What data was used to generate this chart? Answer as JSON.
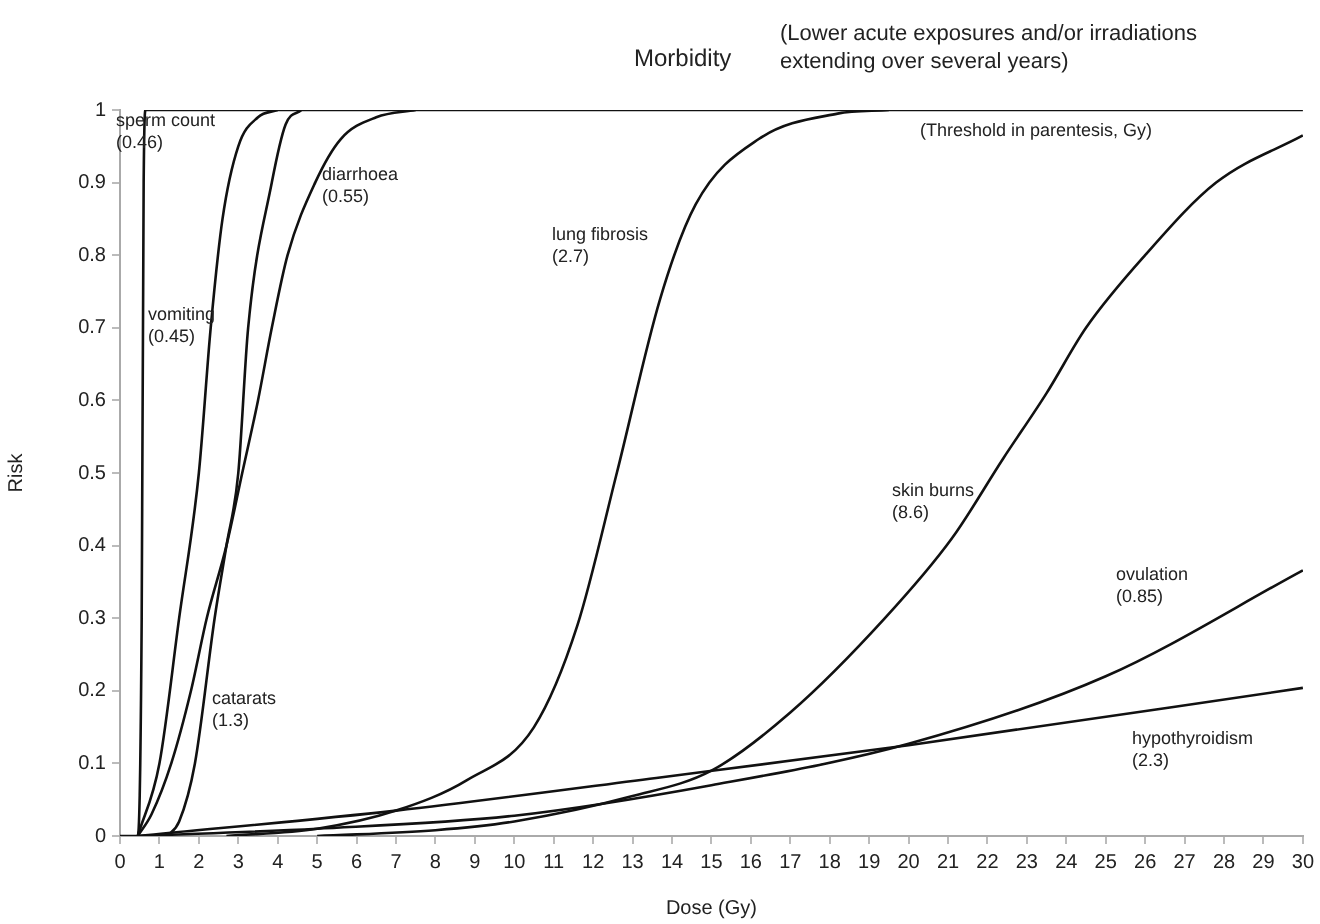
{
  "chart_data": {
    "type": "line",
    "title": "Morbidity",
    "subtitle": "(Lower acute exposures and/or irradiations extending over several years)",
    "xlabel": "Dose (Gy)",
    "ylabel": "Risk",
    "annotations": [
      "(Threshold in parentesis, Gy)"
    ],
    "xlim": [
      0,
      30
    ],
    "xticks": [
      0,
      1,
      2,
      3,
      4,
      5,
      6,
      7,
      8,
      9,
      10,
      11,
      12,
      13,
      14,
      15,
      16,
      17,
      18,
      19,
      20,
      21,
      22,
      23,
      24,
      25,
      26,
      27,
      28,
      29,
      30
    ],
    "ylim": [
      0,
      1
    ],
    "yticks": [
      0,
      0.1,
      0.2,
      0.3,
      0.4,
      0.5,
      0.6,
      0.7,
      0.8,
      0.9,
      1
    ],
    "grid": false,
    "legend": false,
    "marker": "none",
    "line_style": "solid",
    "series": [
      {
        "name": "sperm count (0.46)",
        "color": "#111111",
        "x": [
          0,
          0.45,
          0.55,
          0.6,
          0.65,
          30
        ],
        "values": [
          0,
          0,
          0.3,
          0.9,
          1,
          1
        ]
      },
      {
        "name": "vomiting (0.45)",
        "color": "#111111",
        "x": [
          0.45,
          1,
          1.5,
          2,
          2.3,
          2.6,
          3,
          3.5,
          4
        ],
        "values": [
          0,
          0.1,
          0.3,
          0.5,
          0.7,
          0.85,
          0.95,
          0.99,
          1
        ]
      },
      {
        "name": "catarats (1.3)",
        "color": "#111111",
        "x": [
          1.2,
          1.5,
          1.9,
          2.4,
          2.7,
          3,
          3.25,
          3.85,
          4.2,
          4.6
        ],
        "values": [
          0,
          0.02,
          0.1,
          0.3,
          0.4,
          0.5,
          0.7,
          0.9,
          0.98,
          1
        ]
      },
      {
        "name": "diarrhoea (0.55)",
        "color": "#111111",
        "x": [
          0.45,
          0.8,
          1.3,
          1.8,
          2.2,
          2.7,
          3.1,
          3.5,
          3.85,
          4.25,
          4.95,
          5.6,
          6.5,
          7.5
        ],
        "values": [
          0,
          0.03,
          0.1,
          0.2,
          0.3,
          0.4,
          0.5,
          0.6,
          0.7,
          0.8,
          0.9,
          0.96,
          0.99,
          1
        ]
      },
      {
        "name": "lung fibrosis (2.7)",
        "color": "#111111",
        "x": [
          2.7,
          5,
          7,
          8.8,
          10.5,
          11.6,
          12.6,
          13.7,
          14.6,
          16.2,
          18.2,
          19.5
        ],
        "values": [
          0,
          0.01,
          0.035,
          0.077,
          0.15,
          0.29,
          0.5,
          0.74,
          0.87,
          0.96,
          0.995,
          1
        ]
      },
      {
        "name": "skin burns (8.6)",
        "color": "#111111",
        "x": [
          5,
          8,
          10,
          13,
          15,
          17,
          19.4,
          21.1,
          22.4,
          23.5,
          24.5,
          26,
          27.8,
          30
        ],
        "values": [
          0,
          0.008,
          0.02,
          0.055,
          0.09,
          0.17,
          0.3,
          0.41,
          0.52,
          0.61,
          0.7,
          0.8,
          0.9,
          0.965
        ]
      },
      {
        "name": "ovulation (0.85)",
        "color": "#111111",
        "x": [
          0.45,
          5,
          10,
          15,
          20,
          25,
          30
        ],
        "values": [
          0,
          0.01,
          0.028,
          0.07,
          0.127,
          0.22,
          0.366
        ]
      },
      {
        "name": "hypothyroidism (2.3)",
        "color": "#111111",
        "x": [
          0.45,
          7,
          13.6,
          20,
          30
        ],
        "values": [
          0,
          0.035,
          0.08,
          0.125,
          0.204
        ]
      }
    ]
  }
}
